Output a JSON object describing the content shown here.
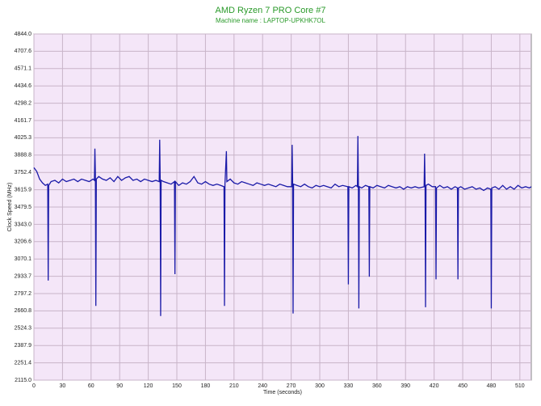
{
  "chart_data": {
    "type": "line",
    "title": "AMD Ryzen 7 PRO Core #7",
    "subtitle": "Machine name : LAPTOP-UPKHK7OL",
    "x_label": "Time (seconds)",
    "y_label": "Clock Speed (MHz)",
    "xlim": [
      0,
      522
    ],
    "ylim": [
      2115,
      4844
    ],
    "xticks": [
      0,
      30,
      60,
      90,
      120,
      150,
      180,
      210,
      240,
      270,
      300,
      330,
      360,
      390,
      420,
      450,
      480,
      510
    ],
    "yticks": [
      {
        "value": 2115,
        "label": "2115.0"
      },
      2251.4,
      2387.9,
      2524.3,
      2660.8,
      2797.2,
      2933.7,
      3070.1,
      3206.6,
      {
        "value": 3343,
        "label": "3343.0"
      },
      3479.5,
      3615.9,
      3752.4,
      3888.8,
      4025.3,
      4161.7,
      4298.2,
      4434.6,
      4571.1,
      4707.6,
      {
        "value": 4844,
        "label": "4844.0"
      }
    ],
    "grid": true,
    "series": [
      {
        "name": "Core #7",
        "color": "#1a1aa8",
        "x": [
          0,
          3,
          6,
          9,
          12,
          14.5,
          15,
          15.5,
          18,
          22,
          26,
          30,
          34,
          38,
          42,
          46,
          50,
          54,
          58,
          62,
          63.5,
          64,
          64.5,
          65,
          65.5,
          68,
          72,
          76,
          80,
          84,
          88,
          92,
          96,
          100,
          104,
          108,
          112,
          116,
          120,
          124,
          128,
          131.5,
          132,
          132.5,
          133,
          133.5,
          136,
          140,
          144,
          147.5,
          148,
          148.5,
          152,
          156,
          160,
          164,
          168,
          172,
          176,
          180,
          184,
          188,
          192,
          196,
          199.5,
          200,
          200.5,
          202,
          202.5,
          206,
          210,
          214,
          218,
          222,
          226,
          230,
          234,
          238,
          242,
          246,
          250,
          254,
          258,
          262,
          266,
          270.5,
          271,
          271.5,
          272,
          272.5,
          276,
          280,
          284,
          288,
          292,
          296,
          300,
          304,
          308,
          312,
          316,
          320,
          324,
          329.5,
          330,
          330.5,
          334,
          338,
          339.5,
          340,
          340.5,
          341,
          341.5,
          344,
          348,
          351.5,
          352,
          352.5,
          356,
          360,
          364,
          368,
          372,
          376,
          380,
          384,
          388,
          392,
          396,
          400,
          404,
          409.5,
          410,
          410.5,
          411,
          411.5,
          414,
          418,
          421.5,
          422,
          422.5,
          426,
          430,
          434,
          438,
          442,
          444.5,
          445,
          445.5,
          448,
          452,
          456,
          460,
          464,
          468,
          472,
          476,
          479.5,
          480,
          480.5,
          484,
          488,
          492,
          496,
          500,
          504,
          508,
          512,
          516,
          520,
          522
        ],
        "values": [
          3790,
          3760,
          3700,
          3670,
          3650,
          3660,
          2900,
          3650,
          3680,
          3690,
          3670,
          3700,
          3680,
          3690,
          3700,
          3680,
          3700,
          3690,
          3680,
          3700,
          3690,
          3940,
          3750,
          2700,
          3700,
          3720,
          3700,
          3690,
          3710,
          3680,
          3720,
          3690,
          3710,
          3720,
          3690,
          3700,
          3680,
          3700,
          3690,
          3680,
          3690,
          3680,
          4010,
          3720,
          2620,
          3690,
          3680,
          3670,
          3660,
          3680,
          2950,
          3680,
          3650,
          3670,
          3660,
          3680,
          3720,
          3670,
          3660,
          3680,
          3660,
          3650,
          3660,
          3650,
          3640,
          2700,
          3660,
          3920,
          3680,
          3700,
          3670,
          3660,
          3680,
          3670,
          3660,
          3650,
          3670,
          3660,
          3650,
          3660,
          3650,
          3640,
          3660,
          3650,
          3640,
          3640,
          3970,
          3700,
          2640,
          3660,
          3650,
          3640,
          3660,
          3640,
          3630,
          3650,
          3640,
          3650,
          3640,
          3630,
          3660,
          3640,
          3650,
          3640,
          2870,
          3640,
          3630,
          3650,
          3640,
          4040,
          3680,
          2680,
          3640,
          3630,
          3650,
          3640,
          2930,
          3640,
          3630,
          3650,
          3640,
          3630,
          3650,
          3640,
          3630,
          3640,
          3620,
          3640,
          3630,
          3640,
          3630,
          3640,
          3900,
          3660,
          2690,
          3650,
          3660,
          3640,
          3640,
          2910,
          3630,
          3650,
          3630,
          3640,
          3620,
          3640,
          3630,
          2910,
          3630,
          3640,
          3620,
          3630,
          3640,
          3620,
          3630,
          3610,
          3630,
          3620,
          2680,
          3630,
          3640,
          3620,
          3650,
          3620,
          3640,
          3620,
          3650,
          3630,
          3640,
          3630,
          3640
        ]
      }
    ]
  }
}
